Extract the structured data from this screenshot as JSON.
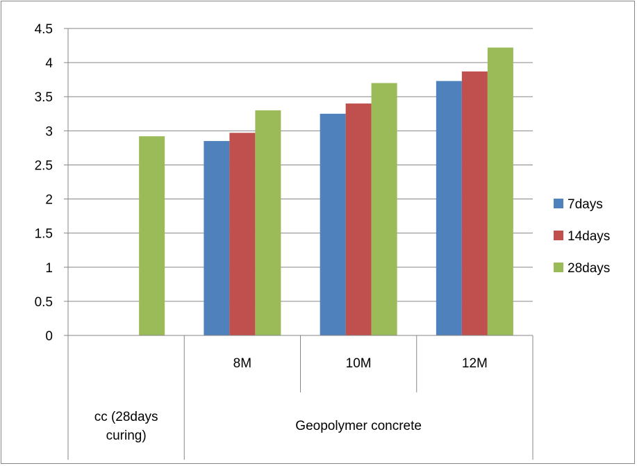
{
  "chart_data": {
    "type": "bar",
    "title": "",
    "xlabel": "",
    "ylabel": "",
    "ylim": [
      0,
      4.5
    ],
    "yticks": [
      "0",
      "0.5",
      "1",
      "1.5",
      "2",
      "2.5",
      "3",
      "3.5",
      "4",
      "4.5"
    ],
    "grid": true,
    "legend_position": "right",
    "categories": [
      "",
      "8M",
      "10M",
      "12M"
    ],
    "category_groups": [
      "cc (28days curing)",
      "Geopolymer concrete"
    ],
    "series": [
      {
        "name": "7days",
        "color": "#4F81BD",
        "values": [
          null,
          2.85,
          3.25,
          3.73
        ]
      },
      {
        "name": "14days",
        "color": "#C0504D",
        "values": [
          null,
          2.97,
          3.4,
          3.87
        ]
      },
      {
        "name": "28days",
        "color": "#9BBB59",
        "values": [
          2.92,
          3.3,
          3.7,
          4.22
        ]
      }
    ]
  }
}
